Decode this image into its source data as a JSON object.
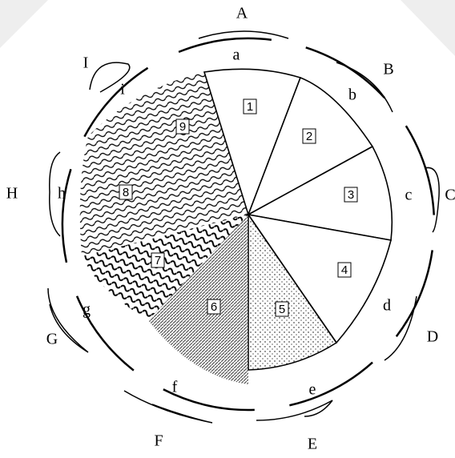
{
  "outer_labels": [
    "A",
    "B",
    "C",
    "D",
    "E",
    "F",
    "G",
    "H",
    "I"
  ],
  "inner_labels": [
    "a",
    "b",
    "c",
    "d",
    "e",
    "f",
    "g",
    "h",
    "i"
  ],
  "zones": [
    "1",
    "2",
    "3",
    "4",
    "5",
    "6",
    "7",
    "8",
    "9"
  ]
}
